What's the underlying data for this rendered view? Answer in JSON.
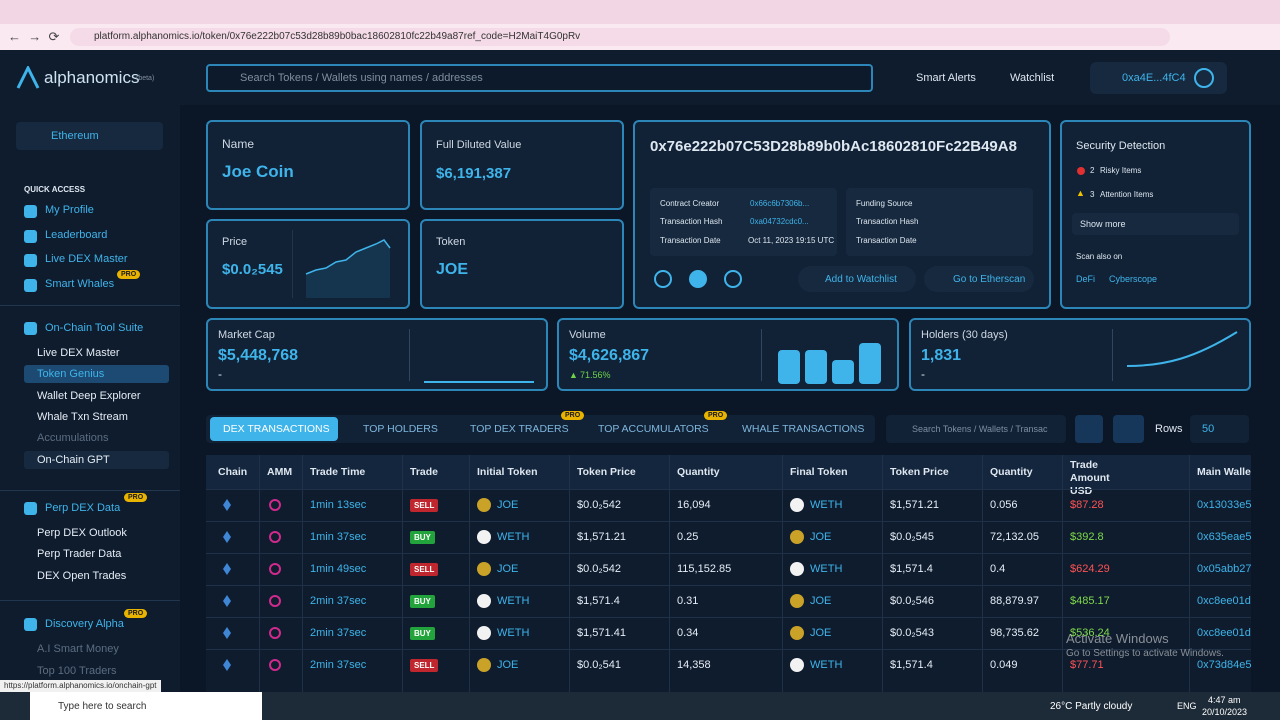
{
  "browser": {
    "url": "platform.alphanomics.io/token/0x76e222b07c53d28b89b0bac18602810fc22b49a87ref_code=H2MaiT4G0pRv",
    "status_url": "https://platform.alphanomics.io/onchain-gpt"
  },
  "header": {
    "logo": "alphanomics",
    "beta": "(beta)",
    "search_placeholder": "Search Tokens / Wallets using names / addresses",
    "smart_alerts": "Smart Alerts",
    "watchlist": "Watchlist",
    "wallet": "0xa4E...4fC4"
  },
  "sidebar": {
    "network": "Ethereum",
    "quick_access_title": "QUICK ACCESS",
    "quick_access": [
      "My Profile",
      "Leaderboard",
      "Live DEX Master",
      "Smart Whales"
    ],
    "pro": "PRO",
    "sections": [
      {
        "title": "On-Chain Tool Suite",
        "items": [
          "Live DEX Master",
          "Token Genius",
          "Wallet Deep Explorer",
          "Whale Txn Stream",
          "Accumulations",
          "On-Chain GPT"
        ]
      },
      {
        "title": "Perp DEX Data",
        "items": [
          "Perp DEX Outlook",
          "Perp Trader Data",
          "DEX Open Trades"
        ]
      },
      {
        "title": "Discovery Alpha",
        "items": [
          "A.I Smart Money",
          "Top 100 Traders"
        ]
      }
    ]
  },
  "token": {
    "name_label": "Name",
    "name": "Joe Coin",
    "fdv_label": "Full Diluted Value",
    "fdv": "$6,191,387",
    "price_label": "Price",
    "price": "$0.0₂545",
    "token_label": "Token",
    "token": "JOE",
    "address": "0x76e222b07C53D28b89b0bAc18602810Fc22B49A8",
    "contract_creator_label": "Contract Creator",
    "contract_creator": "0x66c6b7306b...",
    "tx_hash_label": "Transaction Hash",
    "tx_hash": "0xa04732cdc0...",
    "tx_date_label": "Transaction Date",
    "tx_date": "Oct 11, 2023 19:15 UTC",
    "funding_source_label": "Funding Source",
    "funding_tx_hash_label": "Transaction Hash",
    "funding_tx_date_label": "Transaction Date",
    "add_watchlist": "Add to Watchlist",
    "etherscan": "Go to Etherscan"
  },
  "security": {
    "title": "Security Detection",
    "risky_count": "2",
    "risky_label": "Risky Items",
    "attention_count": "3",
    "attention_label": "Attention Items",
    "show_more": "Show more",
    "scan_label": "Scan also on",
    "scan": [
      "DeFi",
      "Cyberscope"
    ]
  },
  "stats": {
    "market_cap_label": "Market Cap",
    "market_cap": "$5,448,768",
    "market_cap_change": "-",
    "volume_label": "Volume",
    "volume": "$4,626,867",
    "volume_change": "71.56%",
    "holders_label": "Holders (30 days)",
    "holders": "1,831",
    "holders_change": "-"
  },
  "tabs": [
    "DEX TRANSACTIONS",
    "TOP HOLDERS",
    "TOP DEX TRADERS",
    "TOP ACCUMULATORS",
    "WHALE TRANSACTIONS"
  ],
  "tx_search_placeholder": "Search Tokens / Wallets / Transac",
  "rows_label": "Rows",
  "rows_value": "50",
  "table": {
    "columns": [
      "Chain",
      "AMM",
      "Trade Time",
      "Trade",
      "Initial Token",
      "Token Price",
      "Quantity",
      "Final Token",
      "Token Price",
      "Quantity",
      "Trade Amount USD",
      "Main Wallet"
    ],
    "rows": [
      [
        "1min 13sec",
        "SELL",
        "JOE",
        "$0.0₂542",
        "16,094",
        "WETH",
        "$1,571.21",
        "0.056",
        "$87.28",
        "0x13033e5"
      ],
      [
        "1min 37sec",
        "BUY",
        "WETH",
        "$1,571.21",
        "0.25",
        "JOE",
        "$0.0₂545",
        "72,132.05",
        "$392.8",
        "0x635eae5"
      ],
      [
        "1min 49sec",
        "SELL",
        "JOE",
        "$0.0₂542",
        "115,152.85",
        "WETH",
        "$1,571.4",
        "0.4",
        "$624.29",
        "0x05abb27"
      ],
      [
        "2min 37sec",
        "BUY",
        "WETH",
        "$1,571.4",
        "0.31",
        "JOE",
        "$0.0₂546",
        "88,879.97",
        "$485.17",
        "0xc8ee01d"
      ],
      [
        "2min 37sec",
        "BUY",
        "WETH",
        "$1,571.41",
        "0.34",
        "JOE",
        "$0.0₂543",
        "98,735.62",
        "$536.24",
        "0xc8ee01d"
      ],
      [
        "2min 37sec",
        "SELL",
        "JOE",
        "$0.0₂541",
        "14,358",
        "WETH",
        "$1,571.4",
        "0.049",
        "$77.71",
        "0x73d84e5"
      ]
    ]
  },
  "watermark": {
    "title": "Activate Windows",
    "subtitle": "Go to Settings to activate Windows."
  },
  "taskbar": {
    "search": "Type here to search",
    "weather": "26°C  Partly cloudy",
    "lang": "ENG",
    "time": "4:47 am",
    "date": "20/10/2023"
  }
}
